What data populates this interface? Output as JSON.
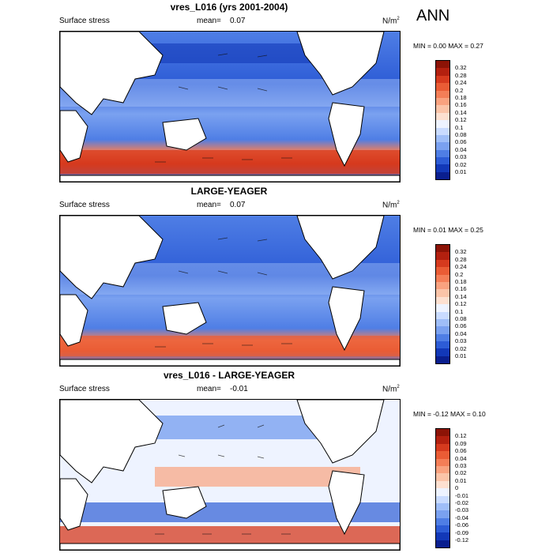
{
  "season": "ANN",
  "panels": [
    {
      "title": "vres_L016 (yrs 2001-2004)",
      "variable": "Surface stress",
      "mean_label": "mean=",
      "mean_value": "0.07",
      "units": "N/m",
      "units_exp": "2",
      "minmax": {
        "min_label": "MIN =",
        "min": "0.00",
        "max_label": "MAX =",
        "max": "0.27"
      },
      "colorbar": {
        "labels": [
          "0.32",
          "0.28",
          "0.24",
          "0.2",
          "0.18",
          "0.16",
          "0.14",
          "0.12",
          "0.1",
          "0.08",
          "0.06",
          "0.04",
          "0.03",
          "0.02",
          "0.01"
        ],
        "colors": [
          "#8c1306",
          "#b3200f",
          "#d63a1e",
          "#ea5c35",
          "#f47e57",
          "#f9a27f",
          "#fbc4a8",
          "#fde0d0",
          "#eef3ff",
          "#c9dbff",
          "#9fbef8",
          "#7aa1f0",
          "#4f7ee5",
          "#2d5cd6",
          "#1238b8",
          "#0a1f8f"
        ]
      }
    },
    {
      "title": "LARGE-YEAGER",
      "variable": "Surface stress",
      "mean_label": "mean=",
      "mean_value": "0.07",
      "units": "N/m",
      "units_exp": "2",
      "minmax": {
        "min_label": "MIN =",
        "min": "0.01",
        "max_label": "MAX =",
        "max": "0.25"
      },
      "colorbar": {
        "labels": [
          "0.32",
          "0.28",
          "0.24",
          "0.2",
          "0.18",
          "0.16",
          "0.14",
          "0.12",
          "0.1",
          "0.08",
          "0.06",
          "0.04",
          "0.03",
          "0.02",
          "0.01"
        ],
        "colors": [
          "#8c1306",
          "#b3200f",
          "#d63a1e",
          "#ea5c35",
          "#f47e57",
          "#f9a27f",
          "#fbc4a8",
          "#fde0d0",
          "#eef3ff",
          "#c9dbff",
          "#9fbef8",
          "#7aa1f0",
          "#4f7ee5",
          "#2d5cd6",
          "#1238b8",
          "#0a1f8f"
        ]
      }
    },
    {
      "title": "vres_L016 - LARGE-YEAGER",
      "variable": "Surface stress",
      "mean_label": "mean=",
      "mean_value": "-0.01",
      "units": "N/m",
      "units_exp": "2",
      "minmax": {
        "min_label": "MIN =",
        "min": "-0.12",
        "max_label": "MAX =",
        "max": "0.10"
      },
      "colorbar": {
        "labels": [
          "0.12",
          "0.09",
          "0.06",
          "0.04",
          "0.03",
          "0.02",
          "0.01",
          "0",
          "-0.01",
          "-0.02",
          "-0.03",
          "-0.04",
          "-0.06",
          "-0.09",
          "-0.12"
        ],
        "colors": [
          "#8c1306",
          "#b3200f",
          "#d63a1e",
          "#ea5c35",
          "#f47e57",
          "#f9a27f",
          "#fbc4a8",
          "#fde0d0",
          "#eef3ff",
          "#c9dbff",
          "#9fbef8",
          "#7aa1f0",
          "#4f7ee5",
          "#2d5cd6",
          "#1238b8",
          "#0a1f8f"
        ]
      }
    }
  ]
}
